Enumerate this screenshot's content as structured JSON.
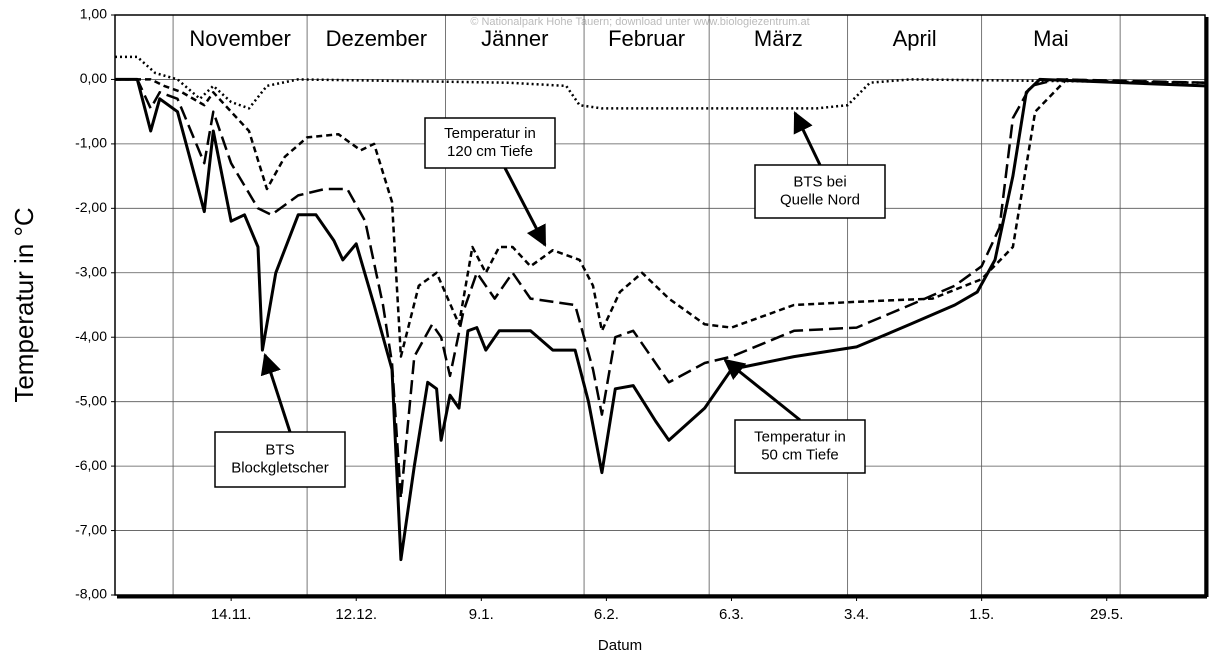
{
  "chart_data": {
    "type": "line",
    "watermark": "© Nationalpark Hohe Tauern; download unter www.biologiezentrum.at",
    "ylabel": "Temperatur in °C",
    "xlabel": "Datum",
    "xlim": [
      "19.10.",
      "20.6."
    ],
    "ylim": [
      -8,
      1
    ],
    "yticks": [
      {
        "value": 1,
        "label": "1,00"
      },
      {
        "value": 0,
        "label": "0,00"
      },
      {
        "value": -1,
        "label": "-1,00"
      },
      {
        "value": -2,
        "label": "-2,00"
      },
      {
        "value": -3,
        "label": "-3,00"
      },
      {
        "value": -4,
        "label": "-4,00"
      },
      {
        "value": -5,
        "label": "-5,00"
      },
      {
        "value": -6,
        "label": "-6,00"
      },
      {
        "value": -7,
        "label": "-7,00"
      },
      {
        "value": -8,
        "label": "-8,00"
      }
    ],
    "xticks": [
      "14.11.",
      "12.12.",
      "9.1.",
      "6.2.",
      "6.3.",
      "3.4.",
      "1.5.",
      "29.5."
    ],
    "xgrid": [
      "1.11.",
      "1.12.",
      "1.1.",
      "1.2.",
      "1.3.",
      "1.4.",
      "1.5.",
      "1.6."
    ],
    "month_labels": [
      "November",
      "Dezember",
      "Jänner",
      "Februar",
      "März",
      "April",
      "Mai"
    ],
    "grid": true,
    "series": [
      {
        "name": "BTS Blockgletscher",
        "color": "#000000",
        "line_style": "solid",
        "x": [
          "19.10.",
          "24.10.",
          "27.10.",
          "29.10.",
          "2.11.",
          "8.11.",
          "10.11.",
          "14.11.",
          "17.11.",
          "20.11.",
          "21.11.",
          "24.11.",
          "29.11.",
          "3.12.",
          "7.12.",
          "9.12.",
          "12.12.",
          "16.12.",
          "20.12.",
          "22.12.",
          "25.12.",
          "28.12.",
          "30.12.",
          "31.12.",
          "2.1.",
          "4.1.",
          "6.1.",
          "8.1.",
          "10.1.",
          "13.1.",
          "20.1.",
          "25.1.",
          "30.1.",
          "2.2.",
          "5.2.",
          "8.2.",
          "12.2.",
          "17.2.",
          "20.2.",
          "28.2.",
          "6.3.",
          "20.3.",
          "3.4.",
          "15.4.",
          "25.4.",
          "30.4.",
          "4.5.",
          "8.5.",
          "11.5.",
          "14.5.",
          "20.6."
        ],
        "values": [
          0,
          0,
          -0.8,
          -0.3,
          -0.5,
          -2.05,
          -0.8,
          -2.2,
          -2.1,
          -2.6,
          -4.2,
          -3.0,
          -2.1,
          -2.1,
          -2.5,
          -2.8,
          -2.55,
          -3.5,
          -4.5,
          -7.45,
          -6.0,
          -4.7,
          -4.8,
          -5.6,
          -4.9,
          -5.1,
          -3.9,
          -3.85,
          -4.2,
          -3.9,
          -3.9,
          -4.2,
          -4.2,
          -5.0,
          -6.1,
          -4.8,
          -4.75,
          -5.3,
          -5.6,
          -5.1,
          -4.5,
          -4.3,
          -4.15,
          -3.8,
          -3.5,
          -3.3,
          -2.8,
          -1.5,
          -0.2,
          0,
          -0.1
        ]
      },
      {
        "name": "Temperatur in 50 cm Tiefe",
        "color": "#000000",
        "line_style": "dashed",
        "x": [
          "19.10.",
          "24.10.",
          "27.10.",
          "29.10.",
          "2.11.",
          "8.11.",
          "10.11.",
          "14.11.",
          "20.11.",
          "23.11.",
          "29.11.",
          "5.12.",
          "10.12.",
          "14.12.",
          "18.12.",
          "20.12.",
          "22.12.",
          "25.12.",
          "29.12.",
          "31.12.",
          "2.1.",
          "5.1.",
          "8.1.",
          "12.1.",
          "16.1.",
          "20.1.",
          "30.1.",
          "3.2.",
          "5.2.",
          "8.2.",
          "12.2.",
          "20.2.",
          "28.2.",
          "6.3.",
          "20.3.",
          "3.4.",
          "15.4.",
          "25.4.",
          "1.5.",
          "5.5.",
          "8.5.",
          "12.5.",
          "18.5.",
          "20.6."
        ],
        "values": [
          0,
          0,
          -0.45,
          -0.2,
          -0.3,
          -1.3,
          -0.5,
          -1.3,
          -2.0,
          -2.1,
          -1.8,
          -1.7,
          -1.7,
          -2.2,
          -3.5,
          -4.4,
          -6.5,
          -4.3,
          -3.8,
          -4.0,
          -4.6,
          -3.6,
          -3.0,
          -3.4,
          -3.0,
          -3.4,
          -3.5,
          -4.5,
          -5.2,
          -4.0,
          -3.9,
          -4.7,
          -4.4,
          -4.3,
          -3.9,
          -3.85,
          -3.5,
          -3.2,
          -2.9,
          -2.3,
          -0.6,
          -0.1,
          0,
          -0.05
        ]
      },
      {
        "name": "Temperatur in 120 cm Tiefe",
        "color": "#000000",
        "line_style": "short-dashed",
        "x": [
          "19.10.",
          "27.10.",
          "30.10.",
          "3.11.",
          "8.11.",
          "10.11.",
          "14.11.",
          "18.11.",
          "22.11.",
          "26.11.",
          "1.12.",
          "8.12.",
          "13.12.",
          "16.12.",
          "20.12.",
          "22.12.",
          "26.12.",
          "30.12.",
          "4.1.",
          "7.1.",
          "10.1.",
          "13.1.",
          "16.1.",
          "20.1.",
          "25.1.",
          "31.1.",
          "3.2.",
          "5.2.",
          "9.2.",
          "14.2.",
          "20.2.",
          "28.2.",
          "6.3.",
          "20.3.",
          "3.4.",
          "20.4.",
          "1.5.",
          "8.5.",
          "13.5.",
          "20.5.",
          "20.6."
        ],
        "values": [
          0,
          0,
          -0.1,
          -0.2,
          -0.4,
          -0.2,
          -0.5,
          -0.8,
          -1.7,
          -1.2,
          -0.9,
          -0.85,
          -1.1,
          -1.0,
          -1.9,
          -4.3,
          -3.2,
          -3.0,
          -3.8,
          -2.6,
          -3.0,
          -2.6,
          -2.6,
          -2.9,
          -2.65,
          -2.8,
          -3.2,
          -3.9,
          -3.3,
          -3.0,
          -3.4,
          -3.8,
          -3.85,
          -3.5,
          -3.45,
          -3.4,
          -3.1,
          -2.6,
          -0.5,
          0,
          -0.1
        ]
      },
      {
        "name": "BTS bei Quelle Nord",
        "color": "#000000",
        "line_style": "dotted",
        "x": [
          "19.10.",
          "24.10.",
          "28.10.",
          "2.11.",
          "7.11.",
          "10.11.",
          "14.11.",
          "18.11.",
          "22.11.",
          "29.11.",
          "15.1.",
          "28.1.",
          "31.1.",
          "5.2.",
          "25.3.",
          "1.4.",
          "6.4.",
          "15.4.",
          "20.6."
        ],
        "values": [
          0.35,
          0.35,
          0.1,
          0,
          -0.3,
          -0.1,
          -0.35,
          -0.45,
          -0.1,
          0,
          -0.05,
          -0.1,
          -0.4,
          -0.45,
          -0.45,
          -0.4,
          -0.05,
          0,
          -0.05
        ]
      }
    ],
    "annotations": [
      {
        "lines": [
          "Temperatur in",
          "120 cm Tiefe"
        ]
      },
      {
        "lines": [
          "BTS bei",
          "Quelle Nord"
        ]
      },
      {
        "lines": [
          "BTS",
          "Blockgletscher"
        ]
      },
      {
        "lines": [
          "Temperatur in",
          "50 cm Tiefe"
        ]
      }
    ]
  }
}
